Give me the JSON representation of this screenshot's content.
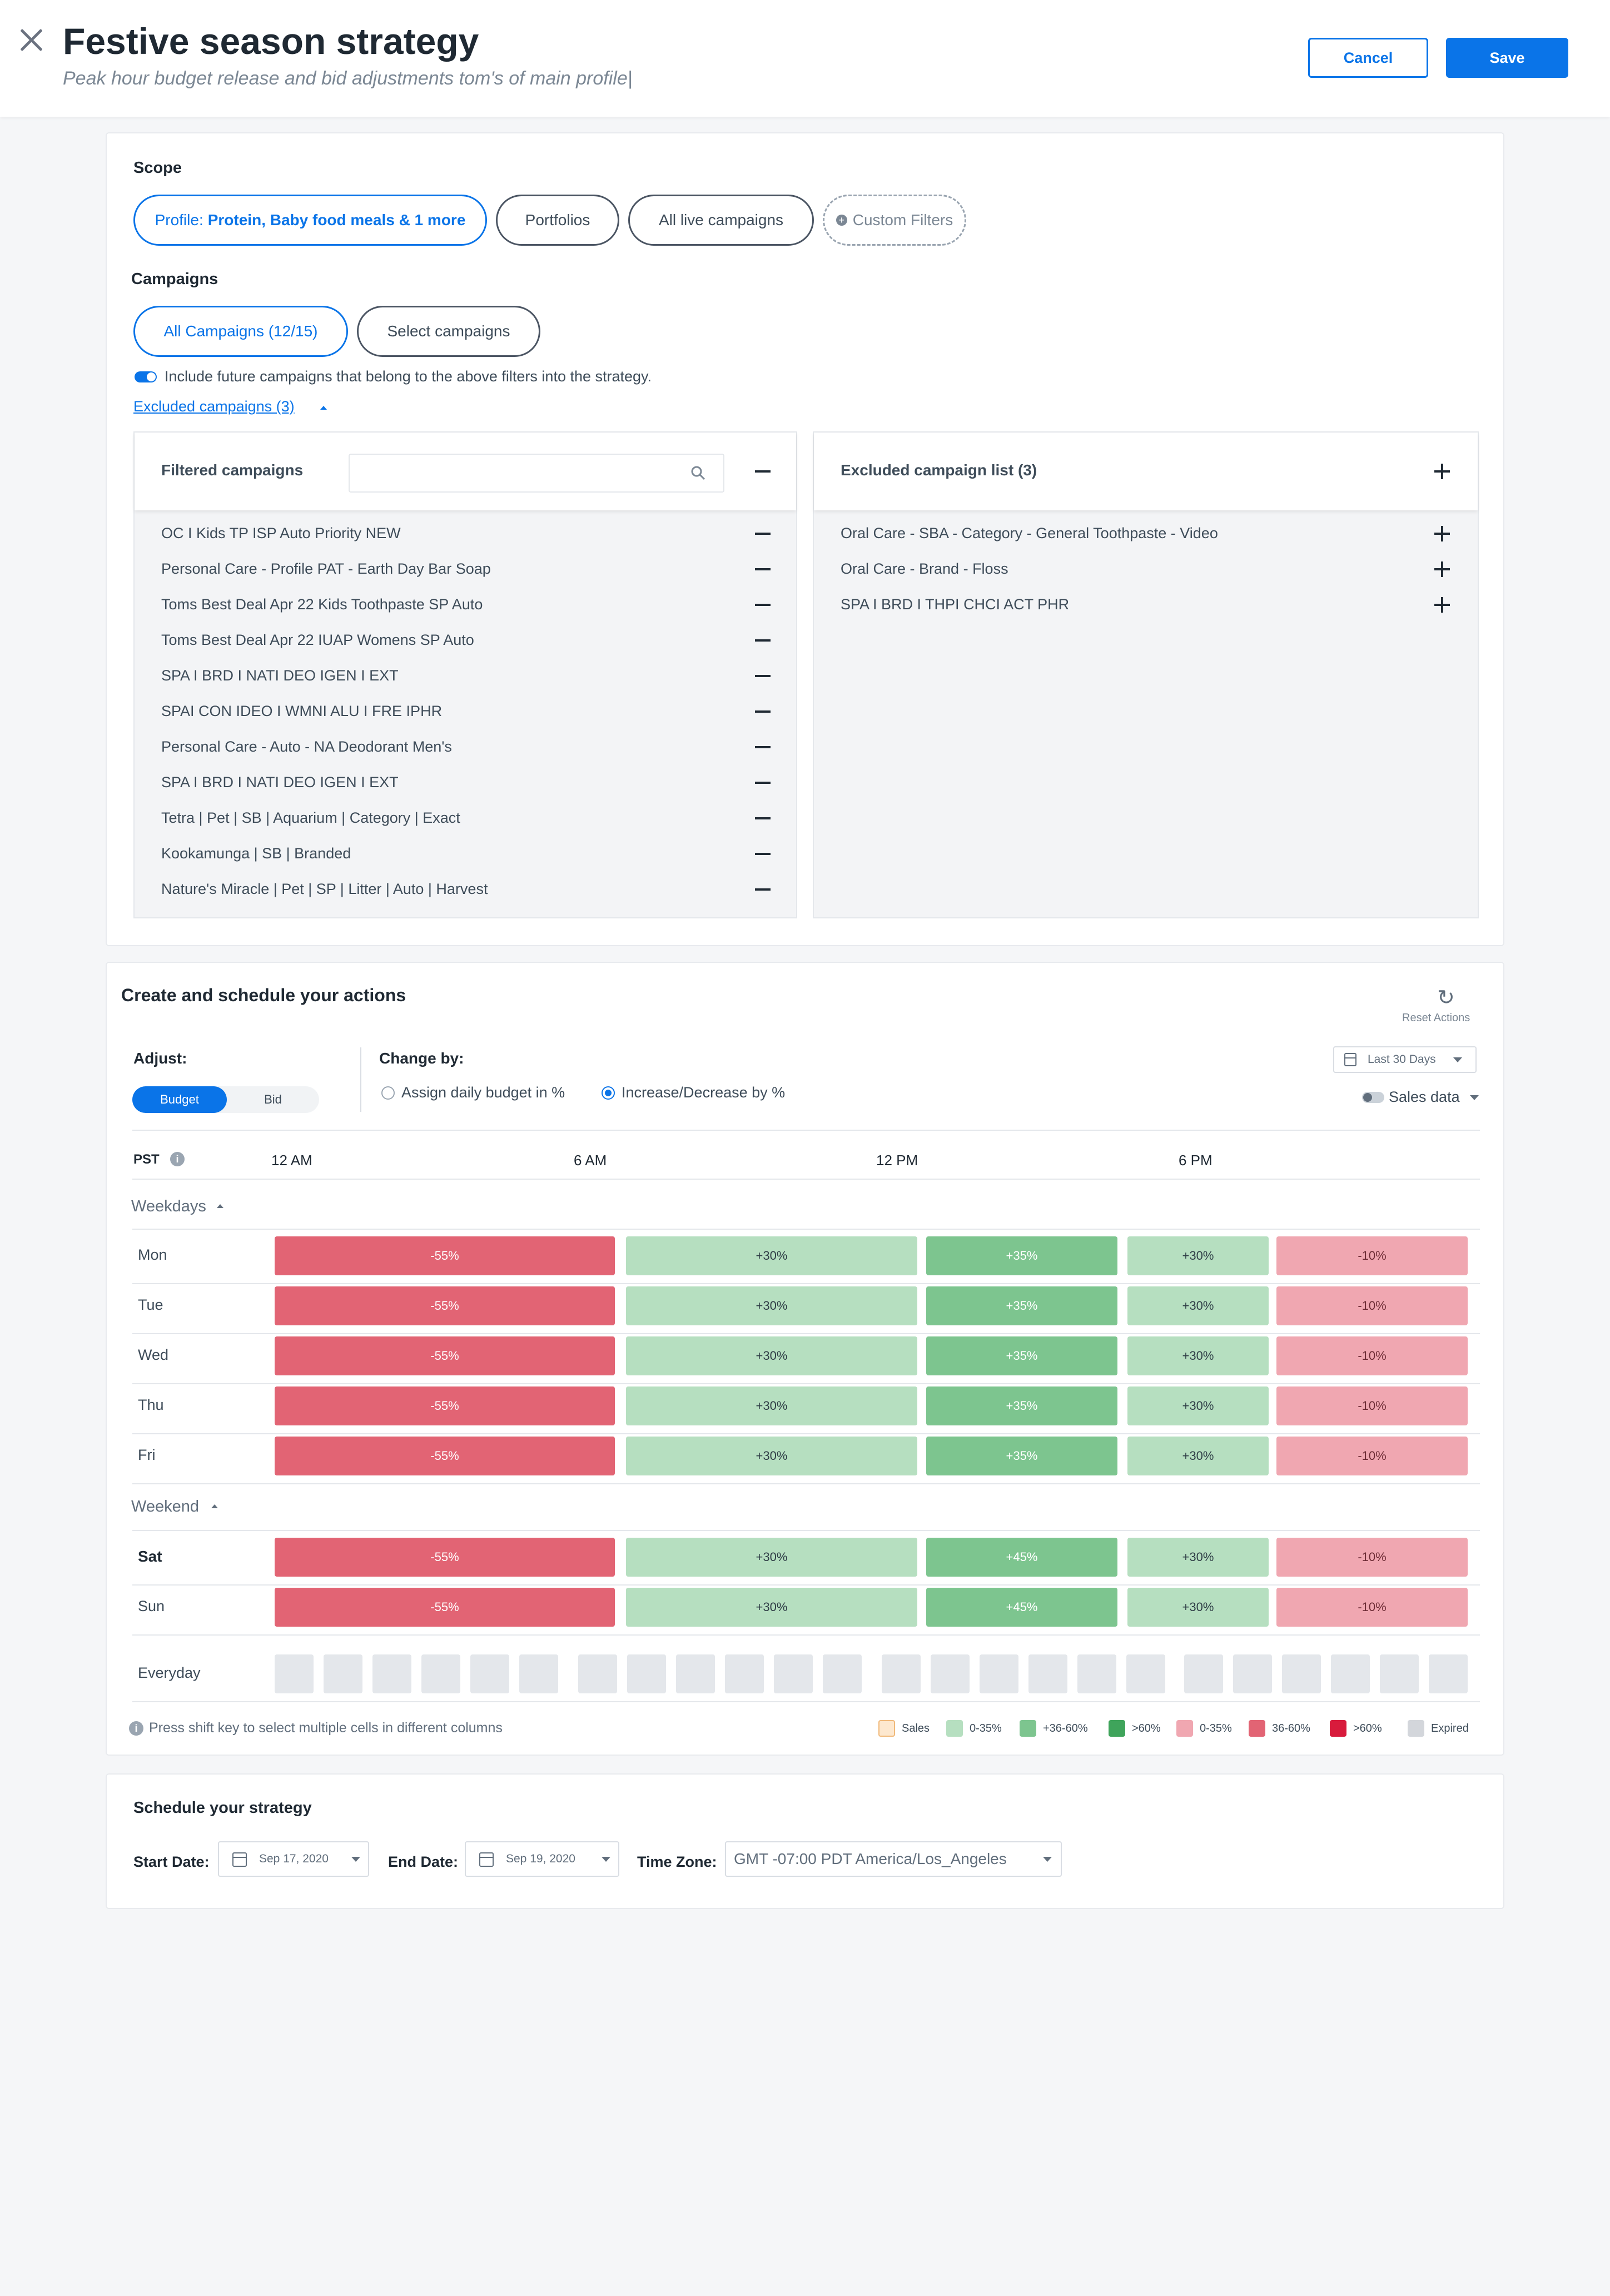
{
  "header": {
    "title": "Festive season strategy",
    "subtitle": "Peak hour budget release and bid adjustments tom's of main profile|",
    "cancel_label": "Cancel",
    "save_label": "Save"
  },
  "scope": {
    "label": "Scope",
    "profile_prefix": "Profile:",
    "profile_value": "Protein, Baby food meals & 1 more",
    "portfolios": "Portfolios",
    "all_live": "All live campaigns",
    "custom_filters": "Custom Filters"
  },
  "campaigns": {
    "label": "Campaigns",
    "all": "All Campaigns (12/15)",
    "select": "Select campaigns",
    "include_future": "Include future campaigns that belong to the above filters into the strategy.",
    "excluded_link": "Excluded campaigns (3)"
  },
  "filtered_panel": {
    "title": "Filtered campaigns",
    "search_placeholder": "",
    "items": [
      "OC I Kids TP ISP Auto Priority NEW",
      "Personal Care - Profile PAT - Earth Day Bar Soap",
      "Toms Best Deal Apr 22 Kids Toothpaste SP Auto",
      "Toms Best Deal Apr 22 IUAP Womens SP Auto",
      "SPA I BRD I NATI DEO IGEN I EXT",
      "SPAI CON IDEO I WMNI ALU I FRE IPHR",
      "Personal Care - Auto - NA Deodorant Men's",
      "SPA I BRD I NATI DEO IGEN I EXT",
      "Tetra | Pet | SB | Aquarium | Category | Exact",
      "Kookamunga | SB | Branded",
      "Nature's Miracle | Pet | SP | Litter | Auto | Harvest"
    ]
  },
  "excluded_panel": {
    "title": "Excluded campaign list (3)",
    "items": [
      "Oral Care - SBA - Category - General Toothpaste - Video",
      "Oral Care - Brand - Floss",
      "SPA I BRD I THPI CHCI ACT PHR"
    ]
  },
  "actions": {
    "title": "Create and schedule your actions",
    "reset": "Reset Actions",
    "adjust_label": "Adjust:",
    "adjust_on": "Budget",
    "adjust_off": "Bid",
    "change_by_label": "Change by:",
    "radio1": "Assign daily budget in %",
    "radio2": "Increase/Decrease by %",
    "range": "Last 30 Days",
    "sales_data": "Sales data",
    "tz": "PST",
    "times": [
      "12 AM",
      "6 AM",
      "12 PM",
      "6 PM"
    ],
    "weekdays_label": "Weekdays",
    "weekend_label": "Weekend",
    "everyday_label": "Everyday",
    "hint": "Press shift key to select multiple cells in different columns"
  },
  "schedule_rows": [
    {
      "day": "Mon",
      "cells": [
        "-55%",
        "+30%",
        "+35%",
        "+30%",
        "-10%"
      ]
    },
    {
      "day": "Tue",
      "cells": [
        "-55%",
        "+30%",
        "+35%",
        "+30%",
        "-10%"
      ]
    },
    {
      "day": "Wed",
      "cells": [
        "-55%",
        "+30%",
        "+35%",
        "+30%",
        "-10%"
      ]
    },
    {
      "day": "Thu",
      "cells": [
        "-55%",
        "+30%",
        "+35%",
        "+30%",
        "-10%"
      ]
    },
    {
      "day": "Fri",
      "cells": [
        "-55%",
        "+30%",
        "+35%",
        "+30%",
        "-10%"
      ]
    },
    {
      "day": "Sat",
      "cells": [
        "-55%",
        "+30%",
        "+45%",
        "+30%",
        "-10%"
      ]
    },
    {
      "day": "Sun",
      "cells": [
        "-55%",
        "+30%",
        "+45%",
        "+30%",
        "-10%"
      ]
    }
  ],
  "legend": [
    {
      "label": "Sales",
      "color": "#fde8cf"
    },
    {
      "label": "0-35%",
      "color": "#b6dfc0"
    },
    {
      "label": "+36-60%",
      "color": "#7dc58f"
    },
    {
      "label": ">60%",
      "color": "#3fa45b"
    },
    {
      "label": "0-35%",
      "color": "#f0a7b1"
    },
    {
      "label": "36-60%",
      "color": "#e26474"
    },
    {
      "label": ">60%",
      "color": "#d81b3c"
    },
    {
      "label": "Expired",
      "color": "#d3d6db"
    }
  ],
  "schedule": {
    "title": "Schedule your strategy",
    "start_label": "Start Date:",
    "start_value": "Sep 17, 2020",
    "end_label": "End Date:",
    "end_value": "Sep 19, 2020",
    "tz_label": "Time Zone:",
    "tz_value": "GMT -07:00 PDT America/Los_Angeles"
  },
  "colors": {
    "accent": "#0a74e8",
    "negative_strong": "#e26474",
    "negative_light": "#f0a7b1",
    "positive_light": "#b6dfc0",
    "positive_mid": "#7dc58f"
  }
}
